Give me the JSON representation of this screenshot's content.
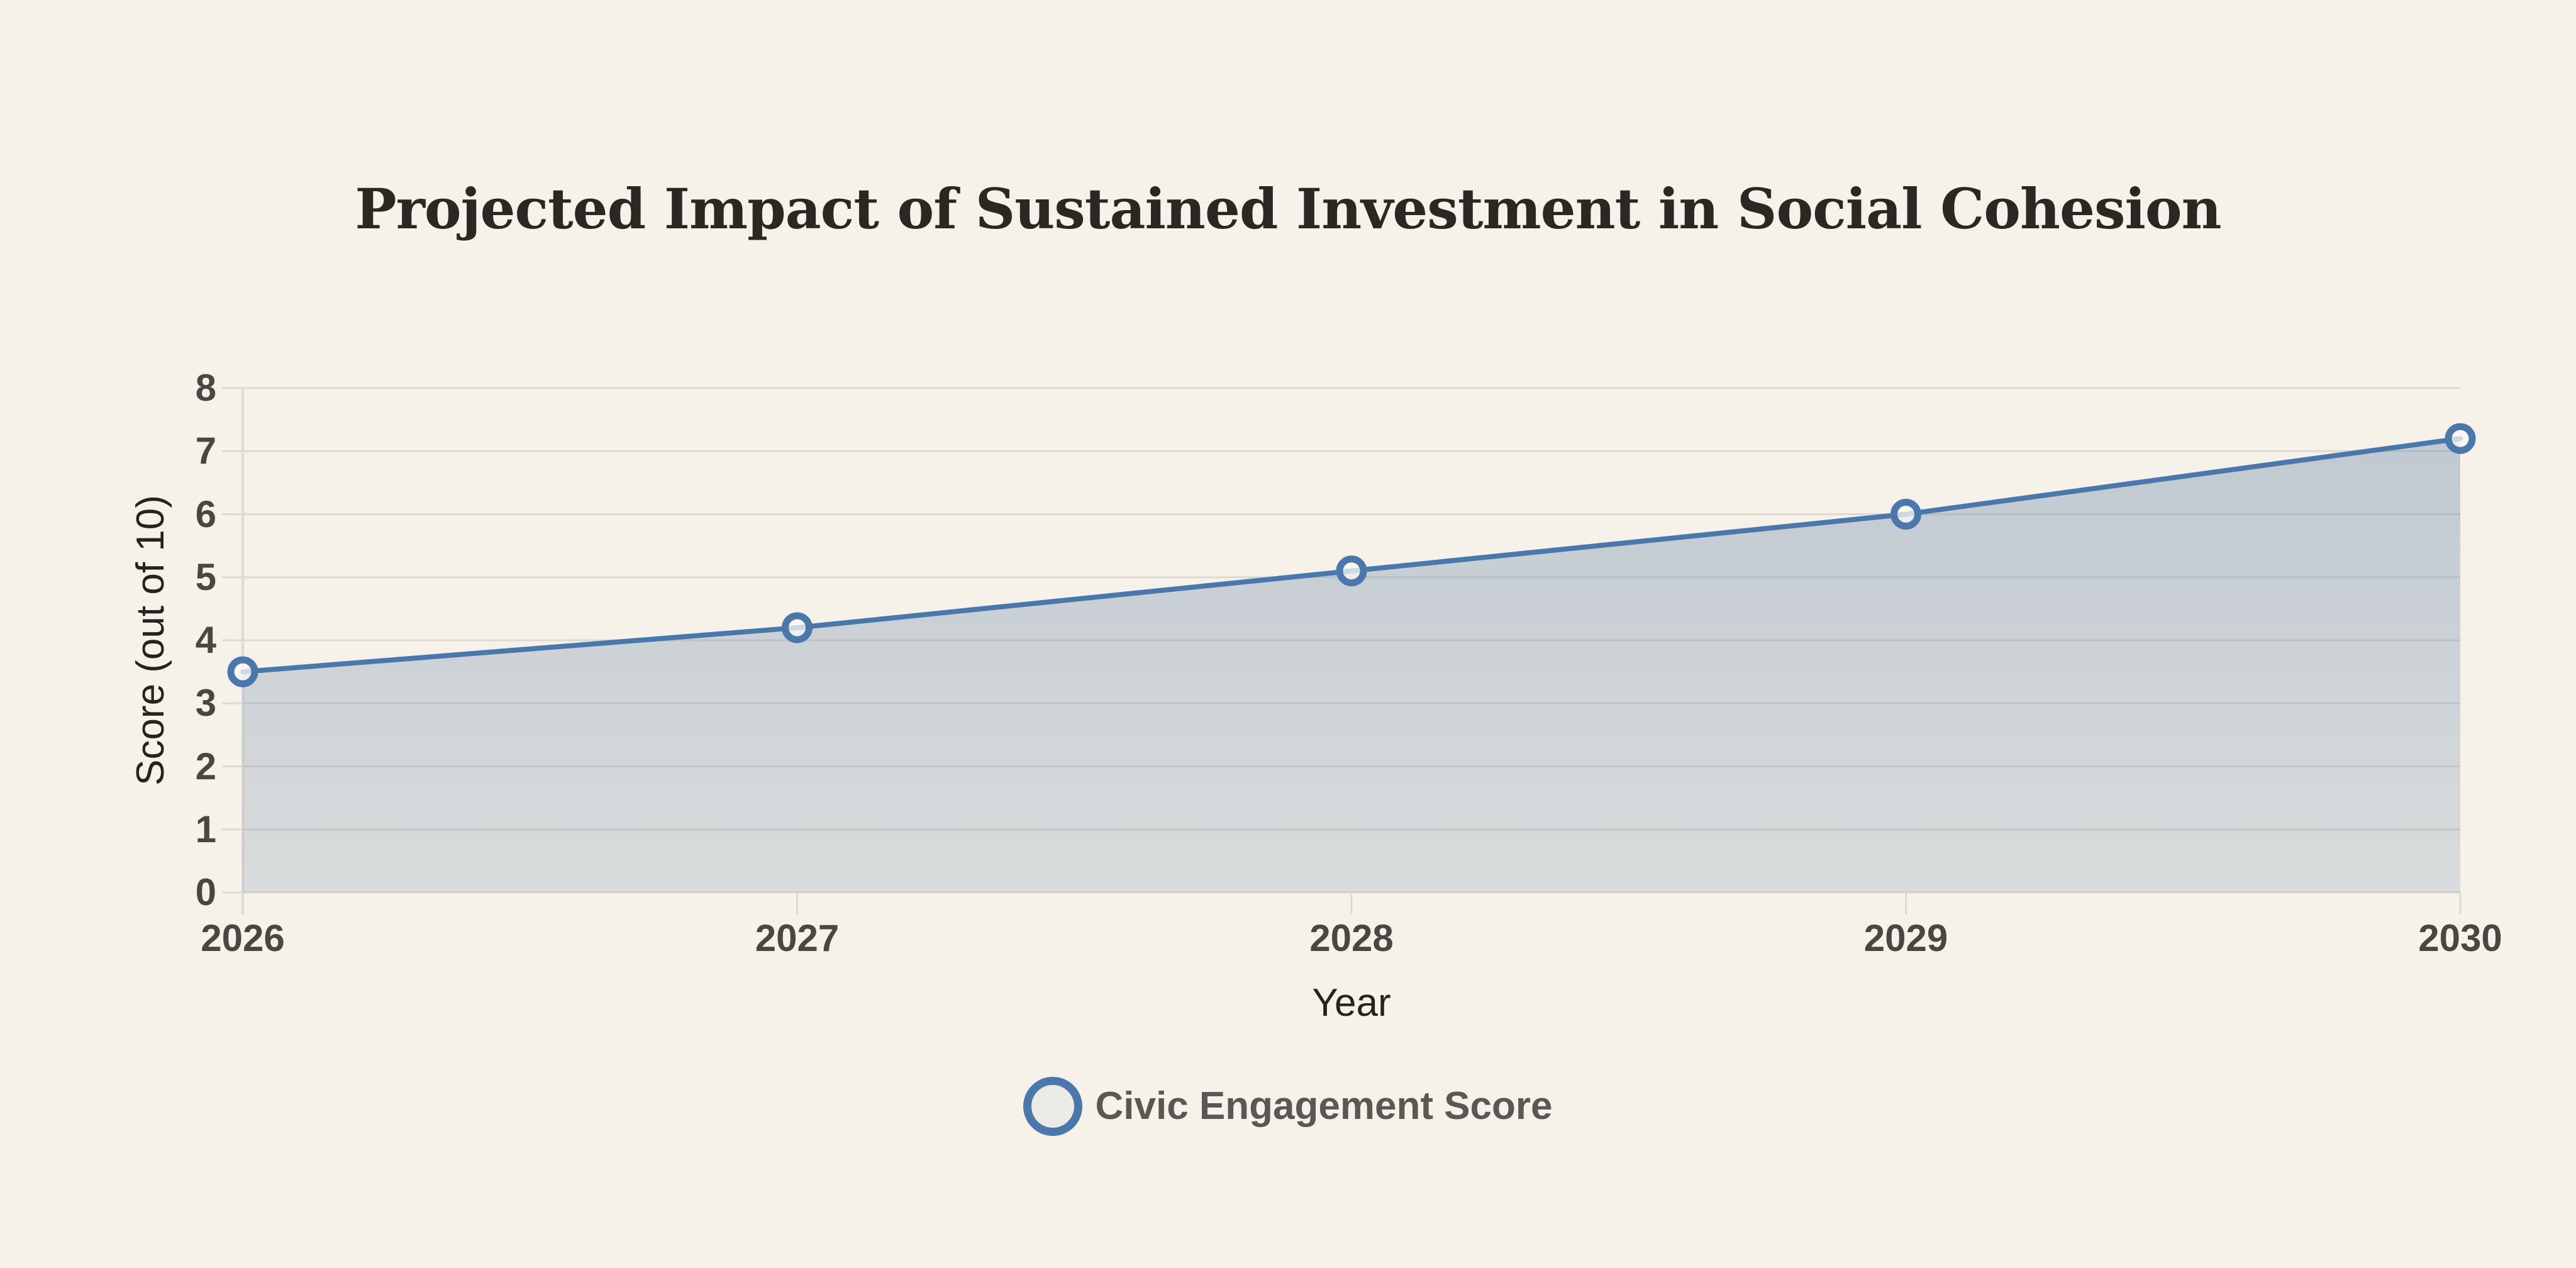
{
  "chart_data": {
    "type": "area",
    "title": "Projected Impact of Sustained Investment in Social Cohesion",
    "xlabel": "Year",
    "ylabel": "Score (out of 10)",
    "categories": [
      "2026",
      "2027",
      "2028",
      "2029",
      "2030"
    ],
    "series": [
      {
        "name": "Civic Engagement Score",
        "values": [
          3.5,
          4.2,
          5.1,
          6.0,
          7.2
        ]
      }
    ],
    "ylim": [
      0,
      8
    ],
    "ytick_step": 1,
    "grid": true,
    "legend_position": "bottom",
    "marker_style": "hollow-circle",
    "colors": {
      "background": "#f6f1e9",
      "line": "#4a78ac",
      "marker_stroke": "#4a78ac",
      "marker_fill": "rgba(252,250,246,0.75)",
      "area_top": "rgba(104,136,170,0.40)",
      "area_bottom": "rgba(104,136,170,0.20)",
      "grid": "#dfdad1",
      "tick_text": "#4a4743",
      "axis_title_text": "#26221d",
      "title_text": "#2b2722",
      "legend_text": "#5a5754"
    }
  }
}
